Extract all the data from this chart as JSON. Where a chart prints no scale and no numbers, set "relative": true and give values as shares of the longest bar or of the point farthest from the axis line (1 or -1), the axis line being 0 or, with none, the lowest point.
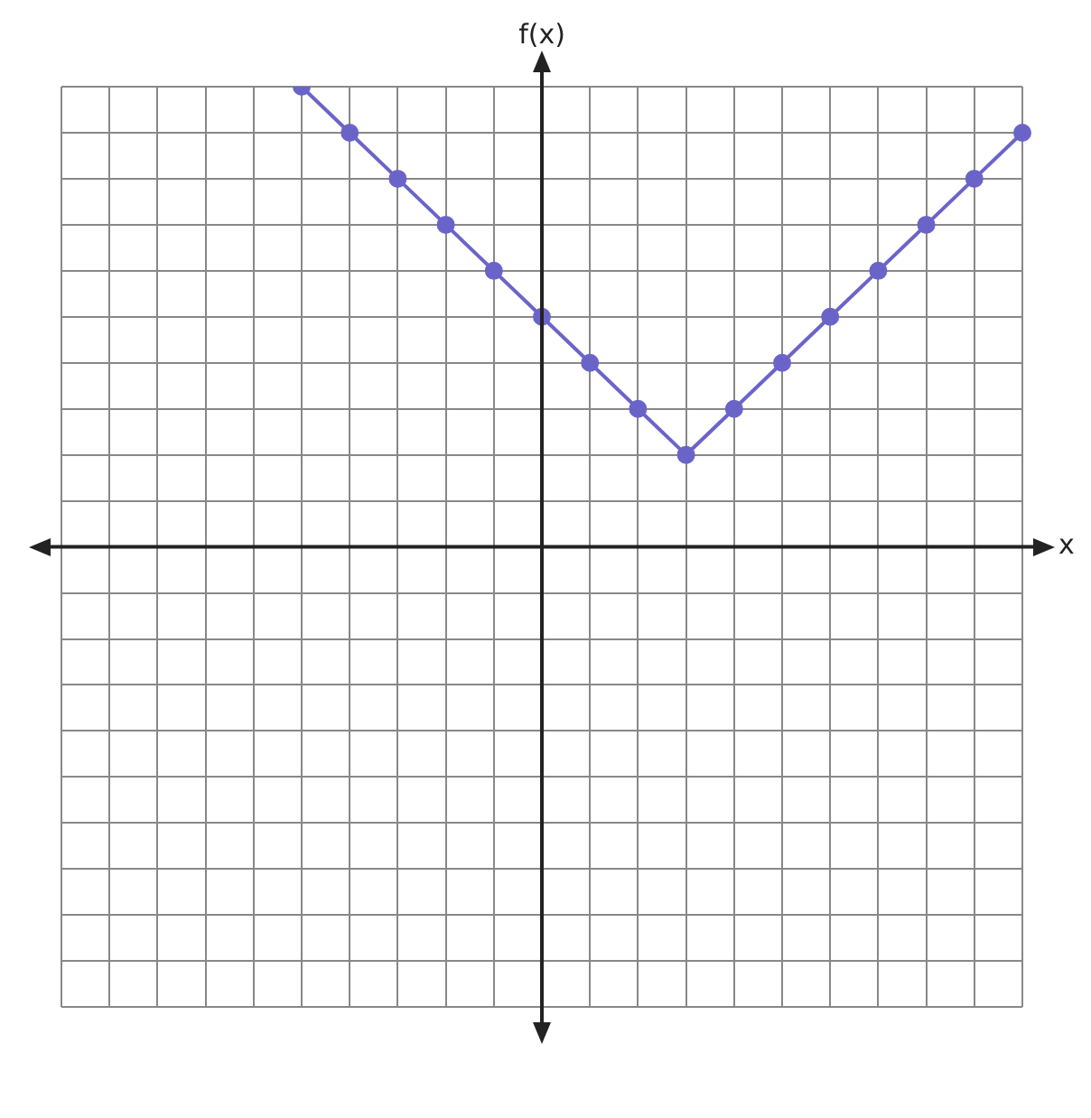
{
  "chart_data": {
    "type": "line",
    "xlabel": "x",
    "ylabel": "f(x)",
    "relative": true,
    "grid": true,
    "marker": "circle",
    "line_style": "solid",
    "categories": [
      null,
      null,
      null,
      null,
      null,
      null,
      null,
      null,
      null,
      null,
      null,
      null,
      null,
      null,
      null,
      null,
      null,
      null,
      null,
      null,
      null
    ],
    "series": [
      {
        "color": "#6b64c8",
        "values": [
          null,
          null,
          null,
          null,
          null,
          1,
          0.9,
          0.8,
          0.7,
          0.6,
          0.5,
          0.4,
          0.3,
          0.2,
          0.3,
          0.4,
          0.5,
          0.6,
          0.7,
          0.8,
          0.9
        ]
      }
    ]
  }
}
